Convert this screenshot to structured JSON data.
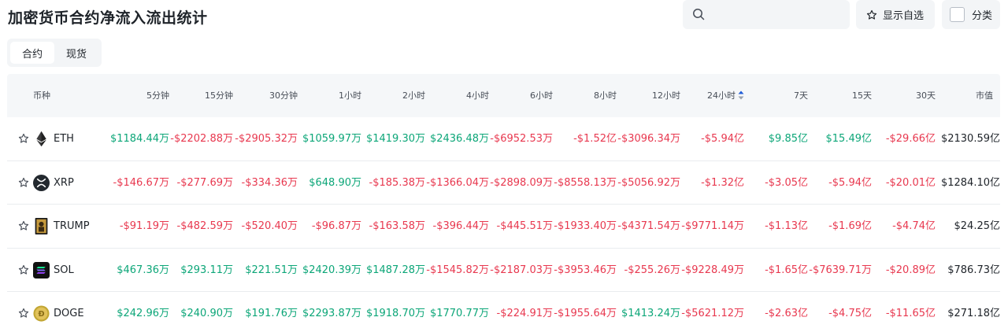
{
  "title": "加密货币合约净流入流出统计",
  "search": {
    "placeholder": "",
    "value": ""
  },
  "favorites_label": "显示自选",
  "category_label": "分类",
  "tabs": [
    {
      "label": "合约",
      "active": true
    },
    {
      "label": "现货",
      "active": false
    }
  ],
  "columns": [
    "币种",
    "5分钟",
    "15分钟",
    "30分钟",
    "1小时",
    "2小时",
    "4小时",
    "6小时",
    "8小时",
    "12小时",
    "24小时",
    "7天",
    "15天",
    "30天",
    "市值"
  ],
  "sorted_column": "24小时",
  "colors": {
    "positive": "#0ca678",
    "negative": "#e8384f"
  },
  "rows": [
    {
      "symbol": "ETH",
      "icon": "eth-icon",
      "values": [
        "$1184.44万",
        "-$2202.88万",
        "-$2905.32万",
        "$1059.97万",
        "$1419.30万",
        "$2436.48万",
        "-$6952.53万",
        "-$1.52亿",
        "-$3096.34万",
        "-$5.94亿",
        "$9.85亿",
        "$15.49亿",
        "-$29.66亿"
      ],
      "market_cap": "$2130.59亿"
    },
    {
      "symbol": "XRP",
      "icon": "xrp-icon",
      "values": [
        "-$146.67万",
        "-$277.69万",
        "-$334.36万",
        "$648.90万",
        "-$185.38万",
        "-$1366.04万",
        "-$2898.09万",
        "-$8558.13万",
        "-$5056.92万",
        "-$1.32亿",
        "-$3.05亿",
        "-$5.94亿",
        "-$20.01亿"
      ],
      "market_cap": "$1284.10亿"
    },
    {
      "symbol": "TRUMP",
      "icon": "trump-icon",
      "values": [
        "-$91.19万",
        "-$482.59万",
        "-$520.40万",
        "-$96.87万",
        "-$163.58万",
        "-$396.44万",
        "-$445.51万",
        "-$1933.40万",
        "-$4371.54万",
        "-$9771.14万",
        "-$1.13亿",
        "-$1.69亿",
        "-$4.74亿"
      ],
      "market_cap": "$24.25亿"
    },
    {
      "symbol": "SOL",
      "icon": "sol-icon",
      "values": [
        "$467.36万",
        "$293.11万",
        "$221.51万",
        "$2420.39万",
        "$1487.28万",
        "-$1545.82万",
        "-$2187.03万",
        "-$3953.46万",
        "-$255.26万",
        "-$9228.49万",
        "-$1.65亿",
        "-$7639.71万",
        "-$20.89亿"
      ],
      "market_cap": "$786.73亿"
    },
    {
      "symbol": "DOGE",
      "icon": "doge-icon",
      "values": [
        "$242.96万",
        "$240.90万",
        "$191.76万",
        "$2293.87万",
        "$1918.70万",
        "$1770.77万",
        "-$224.91万",
        "-$1955.64万",
        "$1413.24万",
        "-$5621.12万",
        "-$2.63亿",
        "-$4.75亿",
        "-$11.65亿"
      ],
      "market_cap": "$271.18亿"
    }
  ]
}
